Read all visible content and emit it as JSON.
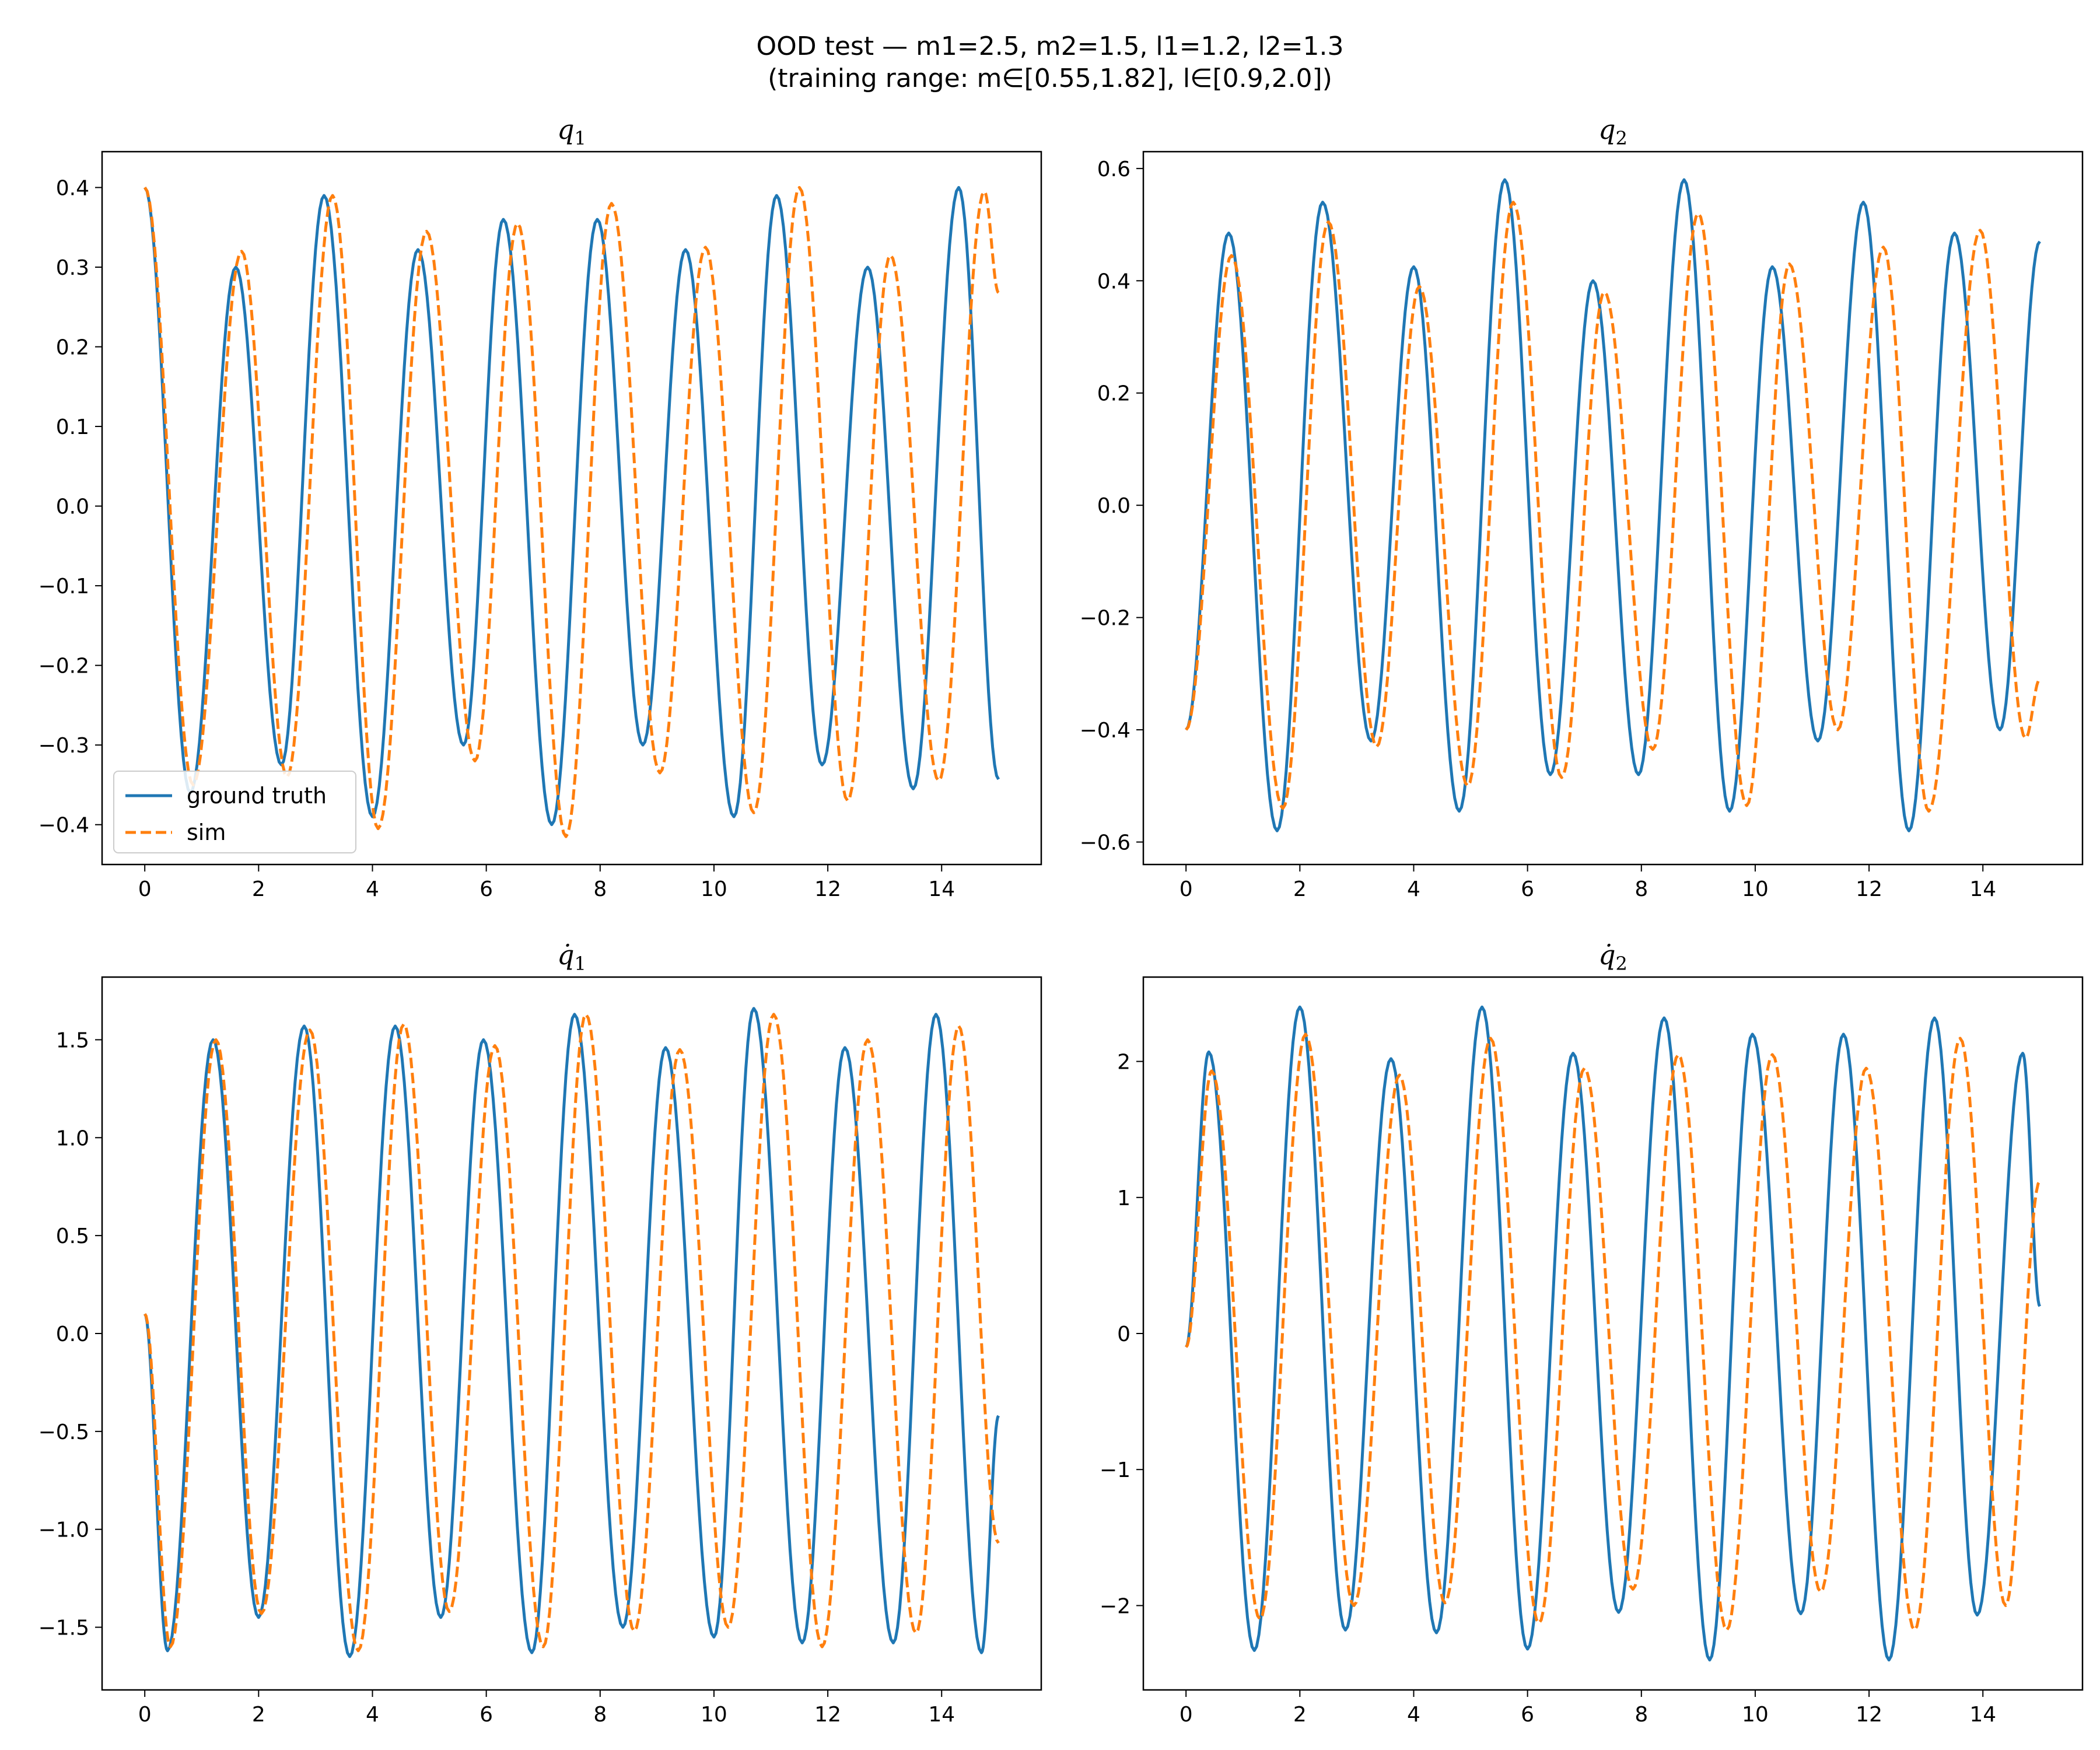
{
  "figure": {
    "title_line1": "OOD test — m1=2.5, m2=1.5, l1=1.2, l2=1.3",
    "title_line2": "(training range: m∈[0.55,1.82], l∈[0.9,2.0])"
  },
  "colors": {
    "ground_truth": "#1f77b4",
    "sim": "#ff7f0e"
  },
  "legend": {
    "entries": [
      "ground truth",
      "sim"
    ],
    "placement": "lower-left of first panel"
  },
  "chart_data": [
    {
      "type": "line",
      "title": "q1",
      "title_main": "q",
      "title_sub": "1",
      "title_dot": false,
      "xlim": [
        -0.75,
        15.75
      ],
      "ylim": [
        -0.45,
        0.445
      ],
      "xticks": [
        0,
        2,
        4,
        6,
        8,
        10,
        12,
        14
      ],
      "yticks": [
        0.4,
        0.3,
        0.2,
        0.1,
        0.0,
        -0.1,
        -0.2,
        -0.3,
        -0.4
      ],
      "ytick_labels": [
        "0.4",
        "0.3",
        "0.2",
        "0.1",
        "0.0",
        "−0.1",
        "−0.2",
        "−0.3",
        "−0.4"
      ],
      "legend": true,
      "series": [
        {
          "name": "ground truth",
          "style": "solid",
          "peaks": [
            [
              0,
              0.4
            ],
            [
              0.8,
              -0.36
            ],
            [
              1.6,
              0.3
            ],
            [
              2.4,
              -0.325
            ],
            [
              3.15,
              0.39
            ],
            [
              4.0,
              -0.39
            ],
            [
              4.8,
              0.322
            ],
            [
              5.6,
              -0.3
            ],
            [
              6.3,
              0.36
            ],
            [
              7.15,
              -0.4
            ],
            [
              7.95,
              0.36
            ],
            [
              8.75,
              -0.3
            ],
            [
              9.5,
              0.322
            ],
            [
              10.35,
              -0.39
            ],
            [
              11.1,
              0.39
            ],
            [
              11.9,
              -0.325
            ],
            [
              12.7,
              0.3
            ],
            [
              13.5,
              -0.355
            ],
            [
              14.3,
              0.4
            ],
            [
              15.0,
              -0.343
            ]
          ]
        },
        {
          "name": "sim",
          "style": "dashed",
          "peaks": [
            [
              0,
              0.4
            ],
            [
              0.85,
              -0.35
            ],
            [
              1.7,
              0.32
            ],
            [
              2.5,
              -0.34
            ],
            [
              3.3,
              0.39
            ],
            [
              4.1,
              -0.405
            ],
            [
              4.95,
              0.345
            ],
            [
              5.8,
              -0.32
            ],
            [
              6.55,
              0.355
            ],
            [
              7.4,
              -0.415
            ],
            [
              8.2,
              0.38
            ],
            [
              9.05,
              -0.335
            ],
            [
              9.85,
              0.325
            ],
            [
              10.7,
              -0.385
            ],
            [
              11.5,
              0.4
            ],
            [
              12.35,
              -0.37
            ],
            [
              13.1,
              0.315
            ],
            [
              13.95,
              -0.345
            ],
            [
              14.75,
              0.395
            ],
            [
              15.0,
              0.268
            ]
          ]
        }
      ]
    },
    {
      "type": "line",
      "title": "q2",
      "title_main": "q",
      "title_sub": "2",
      "title_dot": false,
      "xlim": [
        -0.75,
        15.75
      ],
      "ylim": [
        -0.64,
        0.63
      ],
      "xticks": [
        0,
        2,
        4,
        6,
        8,
        10,
        12,
        14
      ],
      "yticks": [
        0.6,
        0.4,
        0.2,
        0.0,
        -0.2,
        -0.4,
        -0.6
      ],
      "ytick_labels": [
        "0.6",
        "0.4",
        "0.2",
        "0.0",
        "−0.2",
        "−0.4",
        "−0.6"
      ],
      "legend": false,
      "series": [
        {
          "name": "ground truth",
          "style": "solid",
          "peaks": [
            [
              0,
              -0.4
            ],
            [
              0.75,
              0.485
            ],
            [
              1.6,
              -0.58
            ],
            [
              2.4,
              0.54
            ],
            [
              3.25,
              -0.42
            ],
            [
              4.0,
              0.425
            ],
            [
              4.8,
              -0.545
            ],
            [
              5.6,
              0.58
            ],
            [
              6.4,
              -0.48
            ],
            [
              7.15,
              0.4
            ],
            [
              7.95,
              -0.48
            ],
            [
              8.75,
              0.58
            ],
            [
              9.55,
              -0.545
            ],
            [
              10.3,
              0.425
            ],
            [
              11.1,
              -0.42
            ],
            [
              11.9,
              0.54
            ],
            [
              12.7,
              -0.58
            ],
            [
              13.5,
              0.485
            ],
            [
              14.3,
              -0.4
            ],
            [
              15.0,
              0.47
            ]
          ]
        },
        {
          "name": "sim",
          "style": "dashed",
          "peaks": [
            [
              0,
              -0.4
            ],
            [
              0.8,
              0.445
            ],
            [
              1.7,
              -0.54
            ],
            [
              2.5,
              0.505
            ],
            [
              3.35,
              -0.43
            ],
            [
              4.1,
              0.39
            ],
            [
              4.95,
              -0.5
            ],
            [
              5.75,
              0.54
            ],
            [
              6.6,
              -0.485
            ],
            [
              7.35,
              0.38
            ],
            [
              8.2,
              -0.435
            ],
            [
              9.0,
              0.52
            ],
            [
              9.85,
              -0.535
            ],
            [
              10.6,
              0.43
            ],
            [
              11.45,
              -0.4
            ],
            [
              12.25,
              0.46
            ],
            [
              13.05,
              -0.545
            ],
            [
              13.95,
              0.49
            ],
            [
              14.75,
              -0.415
            ],
            [
              15.0,
              -0.31
            ]
          ]
        }
      ]
    },
    {
      "type": "line",
      "title": "q̇1",
      "title_main": "q",
      "title_sub": "1",
      "title_dot": true,
      "xlim": [
        -0.75,
        15.75
      ],
      "ylim": [
        -1.82,
        1.82
      ],
      "xticks": [
        0,
        2,
        4,
        6,
        8,
        10,
        12,
        14
      ],
      "yticks": [
        1.5,
        1.0,
        0.5,
        0.0,
        -0.5,
        -1.0,
        -1.5
      ],
      "ytick_labels": [
        "1.5",
        "1.0",
        "0.5",
        "0.0",
        "−0.5",
        "−1.0",
        "−1.5"
      ],
      "legend": false,
      "series": [
        {
          "name": "ground truth",
          "style": "solid",
          "peaks": [
            [
              0,
              0.1
            ],
            [
              0.4,
              -1.62
            ],
            [
              1.2,
              1.5
            ],
            [
              2.0,
              -1.45
            ],
            [
              2.8,
              1.57
            ],
            [
              3.6,
              -1.65
            ],
            [
              4.4,
              1.57
            ],
            [
              5.2,
              -1.45
            ],
            [
              5.95,
              1.5
            ],
            [
              6.8,
              -1.63
            ],
            [
              7.55,
              1.63
            ],
            [
              8.4,
              -1.5
            ],
            [
              9.15,
              1.46
            ],
            [
              10.0,
              -1.55
            ],
            [
              10.7,
              1.66
            ],
            [
              11.55,
              -1.58
            ],
            [
              12.3,
              1.46
            ],
            [
              13.15,
              -1.58
            ],
            [
              13.9,
              1.63
            ],
            [
              14.7,
              -1.63
            ],
            [
              15.0,
              -0.42
            ]
          ]
        },
        {
          "name": "sim",
          "style": "dashed",
          "peaks": [
            [
              0,
              0.1
            ],
            [
              0.45,
              -1.6
            ],
            [
              1.25,
              1.5
            ],
            [
              2.05,
              -1.43
            ],
            [
              2.9,
              1.55
            ],
            [
              3.75,
              -1.62
            ],
            [
              4.55,
              1.58
            ],
            [
              5.35,
              -1.42
            ],
            [
              6.15,
              1.47
            ],
            [
              7.0,
              -1.6
            ],
            [
              7.75,
              1.63
            ],
            [
              8.6,
              -1.52
            ],
            [
              9.4,
              1.45
            ],
            [
              10.25,
              -1.5
            ],
            [
              11.05,
              1.63
            ],
            [
              11.9,
              -1.6
            ],
            [
              12.7,
              1.5
            ],
            [
              13.55,
              -1.53
            ],
            [
              14.3,
              1.57
            ],
            [
              15.0,
              -1.07
            ]
          ]
        }
      ]
    },
    {
      "type": "line",
      "title": "q̇2",
      "title_main": "q",
      "title_sub": "2",
      "title_dot": true,
      "xlim": [
        -0.75,
        15.75
      ],
      "ylim": [
        -2.62,
        2.62
      ],
      "xticks": [
        0,
        2,
        4,
        6,
        8,
        10,
        12,
        14
      ],
      "yticks": [
        2,
        1,
        0,
        -1,
        -2
      ],
      "ytick_labels": [
        "2",
        "1",
        "0",
        "−1",
        "−2"
      ],
      "legend": false,
      "series": [
        {
          "name": "ground truth",
          "style": "solid",
          "peaks": [
            [
              0,
              -0.1
            ],
            [
              0.4,
              2.07
            ],
            [
              1.2,
              -2.33
            ],
            [
              2.0,
              2.4
            ],
            [
              2.8,
              -2.18
            ],
            [
              3.6,
              2.02
            ],
            [
              4.4,
              -2.2
            ],
            [
              5.2,
              2.4
            ],
            [
              6.0,
              -2.32
            ],
            [
              6.8,
              2.06
            ],
            [
              7.6,
              -2.05
            ],
            [
              8.4,
              2.32
            ],
            [
              9.2,
              -2.4
            ],
            [
              9.95,
              2.2
            ],
            [
              10.8,
              -2.06
            ],
            [
              11.55,
              2.2
            ],
            [
              12.35,
              -2.4
            ],
            [
              13.15,
              2.32
            ],
            [
              13.9,
              -2.07
            ],
            [
              14.7,
              2.06
            ],
            [
              15.0,
              0.2
            ]
          ]
        },
        {
          "name": "sim",
          "style": "dashed",
          "peaks": [
            [
              0,
              -0.1
            ],
            [
              0.45,
              1.93
            ],
            [
              1.3,
              -2.1
            ],
            [
              2.1,
              2.2
            ],
            [
              2.95,
              -2.0
            ],
            [
              3.75,
              1.9
            ],
            [
              4.55,
              -1.98
            ],
            [
              5.35,
              2.17
            ],
            [
              6.2,
              -2.13
            ],
            [
              7.0,
              1.95
            ],
            [
              7.85,
              -1.88
            ],
            [
              8.65,
              2.05
            ],
            [
              9.5,
              -2.18
            ],
            [
              10.3,
              2.05
            ],
            [
              11.15,
              -1.9
            ],
            [
              11.95,
              1.95
            ],
            [
              12.8,
              -2.18
            ],
            [
              13.6,
              2.17
            ],
            [
              14.4,
              -2.0
            ],
            [
              15.0,
              1.12
            ]
          ]
        }
      ]
    }
  ]
}
